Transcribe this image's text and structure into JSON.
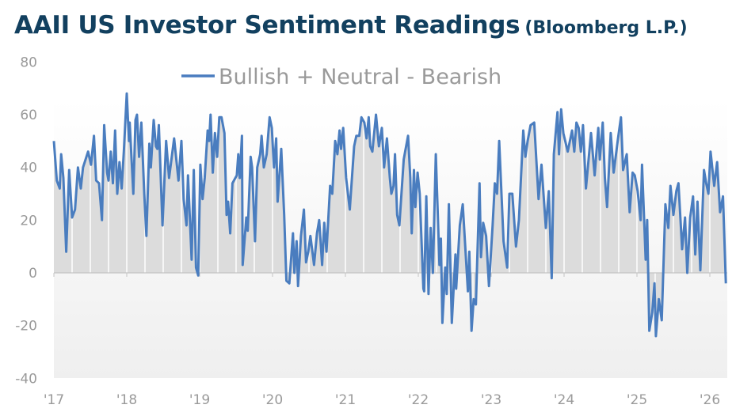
{
  "title": "AAII US Investor Sentiment Readings",
  "source": "(Bloomberg L.P.)",
  "colors": {
    "title": "#12405f",
    "line": "#4a7dbf",
    "fill": "#dcdcdc",
    "axis_text": "#9a9a9a"
  },
  "chart_data": {
    "type": "area",
    "title": "AAII US Investor Sentiment Readings",
    "xlabel": "",
    "ylabel": "",
    "ylim": [
      -40,
      80
    ],
    "xlim": [
      2017,
      2026.24
    ],
    "yticks": [
      80,
      60,
      40,
      20,
      0,
      -20,
      -40
    ],
    "xticks": [
      2017,
      2018,
      2019,
      2020,
      2021,
      2022,
      2023,
      2024,
      2025,
      2026
    ],
    "xtick_labels": [
      "'17",
      "'18",
      "'19",
      "'20",
      "'21",
      "'22",
      "'23",
      "'24",
      "'25",
      "'26"
    ],
    "legend": "top-center",
    "grid": false,
    "series": [
      {
        "name": "Bullish + Neutral - Bearish",
        "points": [
          [
            2017.0,
            50
          ],
          [
            2017.04,
            35
          ],
          [
            2017.08,
            32
          ],
          [
            2017.1,
            45
          ],
          [
            2017.13,
            36
          ],
          [
            2017.17,
            8
          ],
          [
            2017.21,
            39
          ],
          [
            2017.25,
            21
          ],
          [
            2017.29,
            24
          ],
          [
            2017.33,
            40
          ],
          [
            2017.37,
            32
          ],
          [
            2017.4,
            40
          ],
          [
            2017.47,
            46
          ],
          [
            2017.51,
            41
          ],
          [
            2017.55,
            52
          ],
          [
            2017.58,
            35
          ],
          [
            2017.62,
            34
          ],
          [
            2017.66,
            20
          ],
          [
            2017.69,
            56
          ],
          [
            2017.73,
            38
          ],
          [
            2017.75,
            35
          ],
          [
            2017.78,
            46
          ],
          [
            2017.81,
            34
          ],
          [
            2017.84,
            54
          ],
          [
            2017.87,
            30
          ],
          [
            2017.9,
            42
          ],
          [
            2017.93,
            32
          ],
          [
            2017.96,
            46
          ],
          [
            2018.0,
            68
          ],
          [
            2018.03,
            50
          ],
          [
            2018.04,
            57
          ],
          [
            2018.09,
            30
          ],
          [
            2018.12,
            58
          ],
          [
            2018.14,
            60
          ],
          [
            2018.17,
            44
          ],
          [
            2018.2,
            57
          ],
          [
            2018.24,
            30
          ],
          [
            2018.27,
            14
          ],
          [
            2018.31,
            49
          ],
          [
            2018.33,
            40
          ],
          [
            2018.37,
            58
          ],
          [
            2018.4,
            48
          ],
          [
            2018.42,
            47
          ],
          [
            2018.44,
            56
          ],
          [
            2018.49,
            18
          ],
          [
            2018.54,
            50
          ],
          [
            2018.58,
            36
          ],
          [
            2018.65,
            51
          ],
          [
            2018.71,
            35
          ],
          [
            2018.75,
            50
          ],
          [
            2018.78,
            28
          ],
          [
            2018.82,
            18
          ],
          [
            2018.84,
            37
          ],
          [
            2018.89,
            5
          ],
          [
            2018.92,
            39
          ],
          [
            2018.95,
            2
          ],
          [
            2018.98,
            -1
          ],
          [
            2019.01,
            41
          ],
          [
            2019.04,
            28
          ],
          [
            2019.07,
            36
          ],
          [
            2019.11,
            54
          ],
          [
            2019.13,
            50
          ],
          [
            2019.15,
            60
          ],
          [
            2019.18,
            38
          ],
          [
            2019.21,
            53
          ],
          [
            2019.24,
            44
          ],
          [
            2019.27,
            59
          ],
          [
            2019.3,
            59
          ],
          [
            2019.34,
            53
          ],
          [
            2019.37,
            22
          ],
          [
            2019.39,
            27
          ],
          [
            2019.42,
            15
          ],
          [
            2019.45,
            34
          ],
          [
            2019.49,
            36
          ],
          [
            2019.51,
            37
          ],
          [
            2019.53,
            45
          ],
          [
            2019.55,
            36
          ],
          [
            2019.58,
            52
          ],
          [
            2019.59,
            3
          ],
          [
            2019.64,
            21
          ],
          [
            2019.66,
            16
          ],
          [
            2019.7,
            44
          ],
          [
            2019.72,
            40
          ],
          [
            2019.76,
            12
          ],
          [
            2019.79,
            40
          ],
          [
            2019.83,
            45
          ],
          [
            2019.85,
            52
          ],
          [
            2019.88,
            40
          ],
          [
            2019.92,
            45
          ],
          [
            2019.96,
            59
          ],
          [
            2019.99,
            55
          ],
          [
            2020.02,
            40
          ],
          [
            2020.05,
            51
          ],
          [
            2020.07,
            27
          ],
          [
            2020.12,
            47
          ],
          [
            2020.16,
            22
          ],
          [
            2020.19,
            -3
          ],
          [
            2020.23,
            -4
          ],
          [
            2020.28,
            15
          ],
          [
            2020.3,
            0
          ],
          [
            2020.33,
            12
          ],
          [
            2020.35,
            -5
          ],
          [
            2020.39,
            14
          ],
          [
            2020.43,
            24
          ],
          [
            2020.46,
            4
          ],
          [
            2020.49,
            8
          ],
          [
            2020.52,
            14
          ],
          [
            2020.57,
            3
          ],
          [
            2020.61,
            15
          ],
          [
            2020.64,
            20
          ],
          [
            2020.68,
            3
          ],
          [
            2020.71,
            19
          ],
          [
            2020.74,
            8
          ],
          [
            2020.79,
            33
          ],
          [
            2020.82,
            30
          ],
          [
            2020.86,
            50
          ],
          [
            2020.89,
            45
          ],
          [
            2020.92,
            54
          ],
          [
            2020.94,
            47
          ],
          [
            2020.97,
            55
          ],
          [
            2021.01,
            36
          ],
          [
            2021.06,
            24
          ],
          [
            2021.12,
            48
          ],
          [
            2021.15,
            52
          ],
          [
            2021.19,
            52
          ],
          [
            2021.22,
            59
          ],
          [
            2021.26,
            57
          ],
          [
            2021.29,
            51
          ],
          [
            2021.32,
            59
          ],
          [
            2021.34,
            48
          ],
          [
            2021.37,
            46
          ],
          [
            2021.42,
            60
          ],
          [
            2021.46,
            48
          ],
          [
            2021.5,
            55
          ],
          [
            2021.53,
            40
          ],
          [
            2021.57,
            51
          ],
          [
            2021.61,
            36
          ],
          [
            2021.63,
            30
          ],
          [
            2021.66,
            33
          ],
          [
            2021.68,
            45
          ],
          [
            2021.71,
            22
          ],
          [
            2021.74,
            18
          ],
          [
            2021.8,
            43
          ],
          [
            2021.82,
            46
          ],
          [
            2021.86,
            52
          ],
          [
            2021.89,
            36
          ],
          [
            2021.91,
            15
          ],
          [
            2021.94,
            39
          ],
          [
            2021.96,
            25
          ],
          [
            2021.99,
            38
          ],
          [
            2022.02,
            30
          ],
          [
            2022.07,
            -6
          ],
          [
            2022.08,
            -7
          ],
          [
            2022.11,
            29
          ],
          [
            2022.14,
            -8
          ],
          [
            2022.17,
            17
          ],
          [
            2022.2,
            0
          ],
          [
            2022.24,
            45
          ],
          [
            2022.29,
            3
          ],
          [
            2022.31,
            13
          ],
          [
            2022.33,
            -19
          ],
          [
            2022.37,
            2
          ],
          [
            2022.39,
            -8
          ],
          [
            2022.42,
            26
          ],
          [
            2022.46,
            -19
          ],
          [
            2022.51,
            7
          ],
          [
            2022.52,
            -6
          ],
          [
            2022.57,
            18
          ],
          [
            2022.61,
            26
          ],
          [
            2022.68,
            -7
          ],
          [
            2022.7,
            8
          ],
          [
            2022.73,
            -22
          ],
          [
            2022.76,
            -10
          ],
          [
            2022.79,
            -12
          ],
          [
            2022.84,
            34
          ],
          [
            2022.86,
            6
          ],
          [
            2022.89,
            19
          ],
          [
            2022.93,
            14
          ],
          [
            2022.97,
            -5
          ],
          [
            2023.02,
            18
          ],
          [
            2023.05,
            34
          ],
          [
            2023.08,
            30
          ],
          [
            2023.11,
            50
          ],
          [
            2023.17,
            12
          ],
          [
            2023.22,
            2
          ],
          [
            2023.25,
            30
          ],
          [
            2023.29,
            30
          ],
          [
            2023.34,
            10
          ],
          [
            2023.38,
            20
          ],
          [
            2023.44,
            54
          ],
          [
            2023.47,
            44
          ],
          [
            2023.5,
            50
          ],
          [
            2023.54,
            56
          ],
          [
            2023.59,
            57
          ],
          [
            2023.65,
            28
          ],
          [
            2023.69,
            41
          ],
          [
            2023.75,
            17
          ],
          [
            2023.79,
            31
          ],
          [
            2023.83,
            -2
          ],
          [
            2023.86,
            45
          ],
          [
            2023.91,
            61
          ],
          [
            2023.93,
            45
          ],
          [
            2023.96,
            62
          ],
          [
            2023.99,
            53
          ],
          [
            2024.05,
            46
          ],
          [
            2024.11,
            54
          ],
          [
            2024.14,
            46
          ],
          [
            2024.17,
            57
          ],
          [
            2024.2,
            55
          ],
          [
            2024.23,
            46
          ],
          [
            2024.26,
            56
          ],
          [
            2024.3,
            32
          ],
          [
            2024.37,
            53
          ],
          [
            2024.42,
            37
          ],
          [
            2024.47,
            55
          ],
          [
            2024.49,
            43
          ],
          [
            2024.53,
            57
          ],
          [
            2024.56,
            36
          ],
          [
            2024.59,
            25
          ],
          [
            2024.64,
            53
          ],
          [
            2024.68,
            38
          ],
          [
            2024.74,
            51
          ],
          [
            2024.78,
            59
          ],
          [
            2024.81,
            39
          ],
          [
            2024.86,
            45
          ],
          [
            2024.9,
            23
          ],
          [
            2024.94,
            38
          ],
          [
            2024.97,
            37
          ],
          [
            2025.01,
            31
          ],
          [
            2025.05,
            20
          ],
          [
            2025.07,
            41
          ],
          [
            2025.12,
            5
          ],
          [
            2025.14,
            20
          ],
          [
            2025.17,
            -22
          ],
          [
            2025.21,
            -15
          ],
          [
            2025.24,
            -4
          ],
          [
            2025.26,
            -24
          ],
          [
            2025.3,
            -10
          ],
          [
            2025.34,
            -18
          ],
          [
            2025.39,
            26
          ],
          [
            2025.43,
            17
          ],
          [
            2025.46,
            33
          ],
          [
            2025.5,
            22
          ],
          [
            2025.54,
            31
          ],
          [
            2025.57,
            34
          ],
          [
            2025.62,
            9
          ],
          [
            2025.66,
            21
          ],
          [
            2025.69,
            0
          ],
          [
            2025.73,
            21
          ],
          [
            2025.77,
            29
          ],
          [
            2025.8,
            7
          ],
          [
            2025.83,
            27
          ],
          [
            2025.87,
            1
          ],
          [
            2025.92,
            39
          ],
          [
            2025.95,
            34
          ],
          [
            2025.98,
            30
          ],
          [
            2026.01,
            46
          ],
          [
            2026.04,
            38
          ],
          [
            2026.06,
            33
          ],
          [
            2026.1,
            42
          ],
          [
            2026.14,
            23
          ],
          [
            2026.18,
            29
          ],
          [
            2026.22,
            -4
          ]
        ]
      }
    ]
  }
}
